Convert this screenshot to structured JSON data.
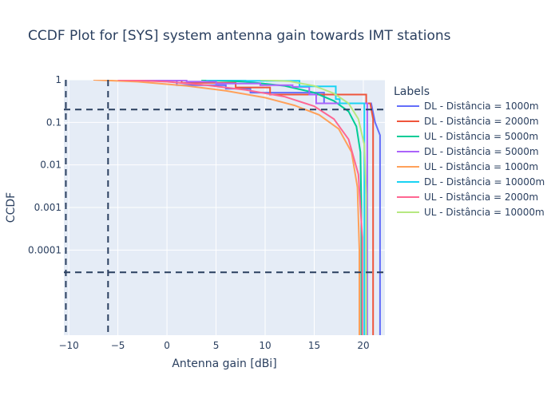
{
  "chart_data": {
    "type": "line",
    "title": "CCDF Plot for [SYS] system antenna gain towards IMT stations",
    "xlabel": "Antenna gain [dBi]",
    "ylabel": "CCDF",
    "xlim": [
      -10.5,
      22.2
    ],
    "ylim_log": [
      1e-06,
      1
    ],
    "y_scale": "log",
    "x_ticks": [
      -10,
      -5,
      0,
      5,
      10,
      15,
      20
    ],
    "x_tick_labels": [
      "−10",
      "−5",
      "0",
      "5",
      "10",
      "15",
      "20"
    ],
    "y_ticks": [
      1,
      0.1,
      0.01,
      0.001,
      0.0001
    ],
    "y_tick_labels": [
      "1",
      "0.1",
      "0.01",
      "0.001",
      "0.0001"
    ],
    "legend_title": "Labels",
    "legend_position": "right",
    "reference_lines": {
      "vertical_x": [
        -10.3,
        -6
      ],
      "horizontal_y": [
        0.2,
        3e-05
      ]
    },
    "series": [
      {
        "name": "DL - Distância = 1000m",
        "color": "#636efa",
        "points": [
          [
            -3,
            1
          ],
          [
            -3,
            0.98
          ],
          [
            1,
            0.98
          ],
          [
            1,
            0.75
          ],
          [
            6,
            0.75
          ],
          [
            6,
            0.62
          ],
          [
            8.5,
            0.62
          ],
          [
            8.5,
            0.5
          ],
          [
            16,
            0.5
          ],
          [
            16,
            0.28
          ],
          [
            20.8,
            0.28
          ],
          [
            21.2,
            0.1
          ],
          [
            21.7,
            0.05
          ],
          [
            21.7,
            1e-06
          ]
        ]
      },
      {
        "name": "DL - Distância = 2000m",
        "color": "#EF553B",
        "points": [
          [
            -2,
            1
          ],
          [
            -2,
            0.97
          ],
          [
            1.5,
            0.97
          ],
          [
            1.5,
            0.85
          ],
          [
            7,
            0.85
          ],
          [
            7,
            0.66
          ],
          [
            10.5,
            0.66
          ],
          [
            10.5,
            0.45
          ],
          [
            20.3,
            0.45
          ],
          [
            20.3,
            0.28
          ],
          [
            20.7,
            0.28
          ],
          [
            21,
            0.12
          ],
          [
            21,
            1e-06
          ]
        ]
      },
      {
        "name": "UL - Distância = 5000m",
        "color": "#00cc96",
        "points": [
          [
            3.5,
            1
          ],
          [
            8,
            0.9
          ],
          [
            12,
            0.72
          ],
          [
            15,
            0.5
          ],
          [
            17,
            0.32
          ],
          [
            18.5,
            0.18
          ],
          [
            19.3,
            0.08
          ],
          [
            19.7,
            0.02
          ],
          [
            19.8,
            0.001
          ],
          [
            19.8,
            1e-06
          ]
        ]
      },
      {
        "name": "DL - Distância = 5000m",
        "color": "#ab63fa",
        "points": [
          [
            -4,
            1
          ],
          [
            -4,
            0.97
          ],
          [
            2,
            0.97
          ],
          [
            2,
            0.9
          ],
          [
            5,
            0.9
          ],
          [
            5,
            0.82
          ],
          [
            9.5,
            0.82
          ],
          [
            9.5,
            0.75
          ],
          [
            12.8,
            0.75
          ],
          [
            12.8,
            0.68
          ],
          [
            14.5,
            0.68
          ],
          [
            14.5,
            0.45
          ],
          [
            15.2,
            0.45
          ],
          [
            15.2,
            0.28
          ],
          [
            20.4,
            0.28
          ],
          [
            20.4,
            1e-06
          ]
        ]
      },
      {
        "name": "UL - Distância = 1000m",
        "color": "#FFA15A",
        "points": [
          [
            -7.5,
            1
          ],
          [
            -3,
            0.9
          ],
          [
            2,
            0.72
          ],
          [
            6,
            0.55
          ],
          [
            10,
            0.38
          ],
          [
            13,
            0.25
          ],
          [
            15.5,
            0.15
          ],
          [
            17.5,
            0.07
          ],
          [
            18.8,
            0.02
          ],
          [
            19.4,
            0.003
          ],
          [
            19.6,
            0.0001
          ],
          [
            19.6,
            1e-06
          ]
        ]
      },
      {
        "name": "DL - Distância = 10000m",
        "color": "#19d3f3",
        "points": [
          [
            4,
            1
          ],
          [
            8,
            1
          ],
          [
            8,
            0.95
          ],
          [
            13.5,
            0.95
          ],
          [
            13.5,
            0.7
          ],
          [
            17.2,
            0.7
          ],
          [
            17.2,
            0.35
          ],
          [
            17.6,
            0.35
          ],
          [
            17.6,
            0.28
          ],
          [
            20.1,
            0.28
          ],
          [
            20.1,
            1e-06
          ]
        ]
      },
      {
        "name": "UL - Distância = 2000m",
        "color": "#FF6692",
        "points": [
          [
            -5,
            1
          ],
          [
            0,
            0.9
          ],
          [
            4,
            0.75
          ],
          [
            8,
            0.58
          ],
          [
            12,
            0.4
          ],
          [
            15,
            0.24
          ],
          [
            17,
            0.12
          ],
          [
            18.5,
            0.04
          ],
          [
            19.5,
            0.006
          ],
          [
            19.9,
            0.0002
          ],
          [
            19.9,
            1e-06
          ]
        ]
      },
      {
        "name": "UL - Distância = 10000m",
        "color": "#B6E880",
        "points": [
          [
            9.5,
            1
          ],
          [
            12.5,
            0.92
          ],
          [
            15,
            0.72
          ],
          [
            17,
            0.48
          ],
          [
            18.5,
            0.28
          ],
          [
            19.5,
            0.12
          ],
          [
            20.1,
            0.03
          ],
          [
            20.3,
            0.002
          ],
          [
            20.3,
            1e-06
          ]
        ]
      }
    ]
  }
}
